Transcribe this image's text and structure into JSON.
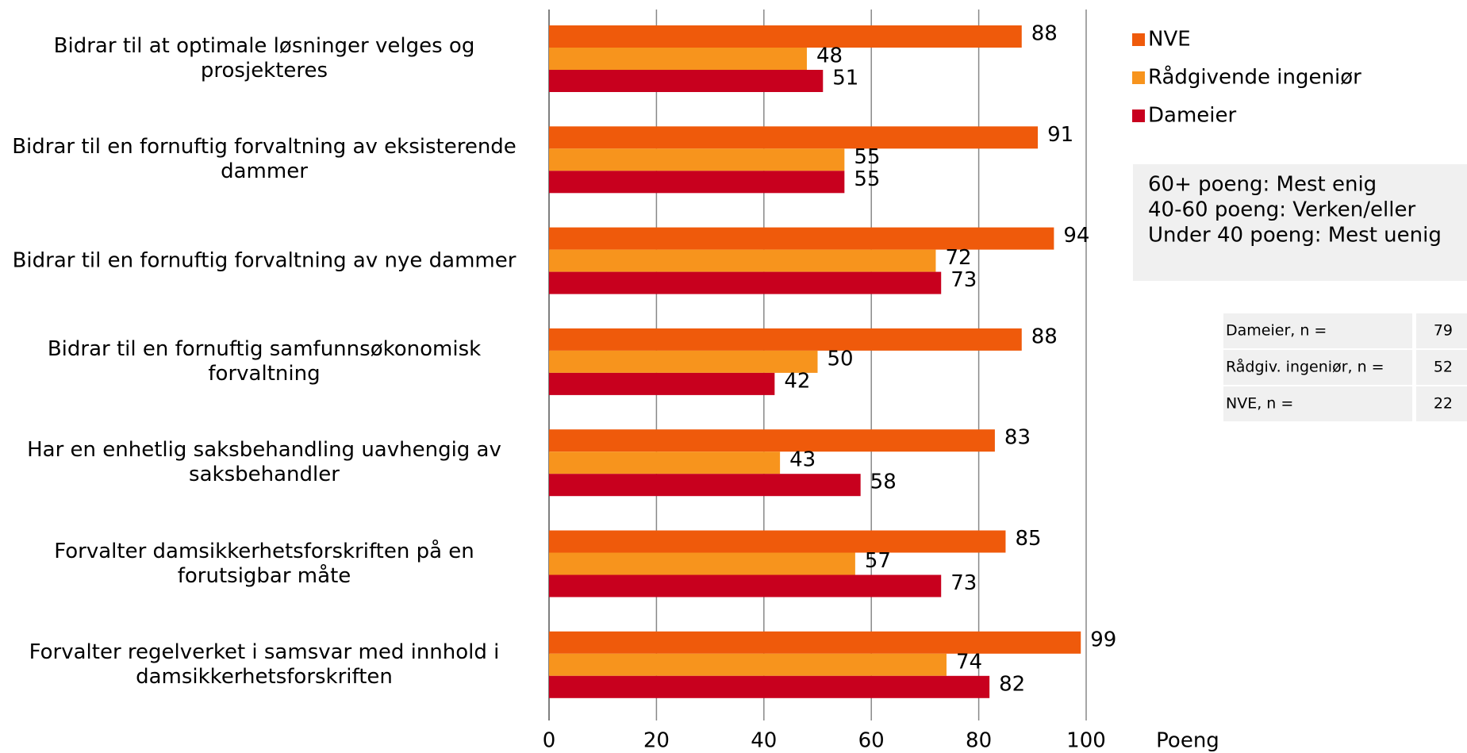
{
  "chart_data": {
    "type": "bar",
    "orientation": "horizontal",
    "categories": [
      "Bidrar til at optimale løsninger velges og\nprosjekteres",
      "Bidrar til en fornuftig forvaltning av eksisterende\ndammer",
      "Bidrar til en fornuftig forvaltning av nye dammer",
      "Bidrar til en fornuftig samfunnsøkonomisk\nforvaltning",
      "Har en enhetlig saksbehandling uavhengig av\nsaksbehandler",
      "Forvalter damsikkerhetsforskriften på en\nforutsigbar måte",
      "Forvalter regelverket i samsvar med innhold i\ndamsikkerhetsforskriften"
    ],
    "series": [
      {
        "name": "NVE",
        "color": "#ef5a0b",
        "values": [
          88,
          91,
          94,
          88,
          83,
          85,
          99
        ]
      },
      {
        "name": "Rådgivende ingeniør",
        "color": "#f7941d",
        "values": [
          48,
          55,
          72,
          50,
          43,
          57,
          74
        ]
      },
      {
        "name": "Dameier",
        "color": "#c8001e",
        "values": [
          51,
          55,
          73,
          42,
          58,
          73,
          82
        ]
      }
    ],
    "xlabel": "Poeng",
    "xlim": [
      0,
      100
    ],
    "xticks": [
      0,
      20,
      40,
      60,
      80,
      100
    ],
    "grid": true,
    "legend": "right"
  },
  "notes": [
    "60+ poeng: Mest enig",
    "40-60 poeng: Verken/eller",
    "Under 40 poeng: Mest uenig"
  ],
  "sample_table": [
    [
      "Dameier, n =",
      "79"
    ],
    [
      "Rådgiv. ingeniør, n =",
      "52"
    ],
    [
      "NVE, n =",
      "22"
    ]
  ]
}
